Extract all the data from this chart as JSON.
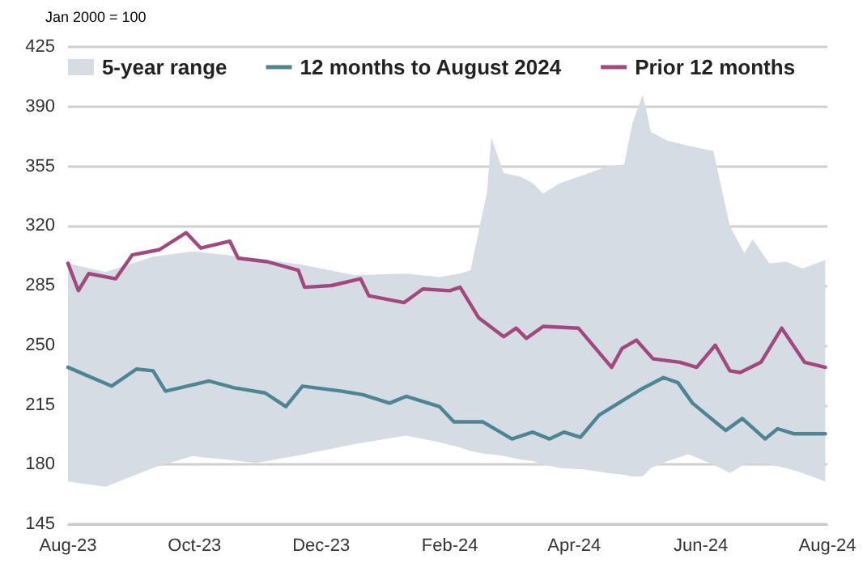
{
  "chart_data": {
    "type": "line",
    "annotations": [
      "Jan 2000 = 100"
    ],
    "xlim": [
      "2023-08-01",
      "2024-08-01"
    ],
    "xticks": [
      {
        "value": "2023-08-01",
        "label": "Aug-23"
      },
      {
        "value": "2023-10-01",
        "label": "Oct-23"
      },
      {
        "value": "2023-12-01",
        "label": "Dec-23"
      },
      {
        "value": "2024-02-01",
        "label": "Feb-24"
      },
      {
        "value": "2024-04-01",
        "label": "Apr-24"
      },
      {
        "value": "2024-06-01",
        "label": "Jun-24"
      },
      {
        "value": "2024-08-01",
        "label": "Aug-24"
      }
    ],
    "ylim": [
      145,
      425
    ],
    "yticks": [
      145,
      180,
      215,
      250,
      285,
      320,
      355,
      390,
      425
    ],
    "grid": "y",
    "legend": "top",
    "marker": "none",
    "line_style": "solid",
    "series": [
      {
        "name": "5-year range",
        "color": "#d6dce4",
        "x": [
          "2023-08-01",
          "2023-08-19",
          "2023-09-11",
          "2023-09-30",
          "2023-10-31",
          "2023-11-23",
          "2023-12-17",
          "2024-01-11",
          "2024-01-27",
          "2024-02-06",
          "2024-02-11",
          "2024-02-19",
          "2024-02-21",
          "2024-02-27",
          "2024-03-06",
          "2024-03-12",
          "2024-03-17",
          "2024-03-25",
          "2024-04-06",
          "2024-04-17",
          "2024-04-25",
          "2024-04-29",
          "2024-05-04",
          "2024-05-08",
          "2024-05-16",
          "2024-05-26",
          "2024-06-07",
          "2024-06-15",
          "2024-06-22",
          "2024-06-26",
          "2024-07-04",
          "2024-07-12",
          "2024-07-20",
          "2024-07-31"
        ],
        "values": [
          null,
          null,
          null,
          null,
          null,
          null,
          null,
          null,
          null,
          null,
          null,
          null,
          null,
          null,
          null,
          null,
          null,
          null,
          null,
          null,
          null,
          null,
          null,
          null,
          null,
          null,
          null,
          null,
          null,
          null,
          null,
          null,
          null,
          null
        ],
        "upper": [
          298,
          293,
          302,
          305,
          301,
          297,
          291,
          292,
          290,
          292,
          294,
          340,
          372,
          351,
          349,
          345,
          339,
          345,
          350,
          355,
          356,
          380,
          397,
          375,
          370,
          367,
          364,
          320,
          304,
          312,
          298,
          299,
          295,
          300
        ],
        "lower": [
          170,
          167,
          178,
          185,
          181,
          186,
          192,
          197,
          193,
          190,
          188,
          186,
          186,
          185,
          183,
          182,
          180,
          178,
          177,
          175,
          174,
          173,
          173,
          178,
          182,
          186,
          180,
          175,
          180,
          181,
          180,
          178,
          175,
          170
        ]
      },
      {
        "name": "12 months to August 2024",
        "color": "#4e8594",
        "x": [
          "2023-08-01",
          "2023-08-22",
          "2023-09-03",
          "2023-09-11",
          "2023-09-17",
          "2023-10-08",
          "2023-10-20",
          "2023-11-04",
          "2023-11-14",
          "2023-11-22",
          "2023-12-11",
          "2023-12-21",
          "2024-01-03",
          "2024-01-11",
          "2024-01-27",
          "2024-02-03",
          "2024-02-17",
          "2024-03-02",
          "2024-03-12",
          "2024-03-20",
          "2024-03-27",
          "2024-04-04",
          "2024-04-13",
          "2024-04-25",
          "2024-05-03",
          "2024-05-14",
          "2024-05-21",
          "2024-05-28",
          "2024-06-09",
          "2024-06-13",
          "2024-06-21",
          "2024-07-02",
          "2024-07-08",
          "2024-07-16",
          "2024-07-31"
        ],
        "values": [
          237,
          226,
          236,
          235,
          223,
          229,
          225,
          222,
          214,
          226,
          223,
          221,
          216,
          220,
          214,
          205,
          205,
          195,
          199,
          195,
          199,
          196,
          209,
          218,
          224,
          231,
          228,
          216,
          204,
          200,
          207,
          195,
          201,
          198,
          198
        ]
      },
      {
        "name": "Prior 12 months",
        "color": "#a3487f",
        "x": [
          "2023-08-01",
          "2023-08-06",
          "2023-08-11",
          "2023-08-24",
          "2023-09-01",
          "2023-09-14",
          "2023-09-27",
          "2023-10-04",
          "2023-10-18",
          "2023-10-22",
          "2023-11-05",
          "2023-11-20",
          "2023-11-23",
          "2023-12-06",
          "2023-12-20",
          "2023-12-24",
          "2024-01-10",
          "2024-01-19",
          "2024-02-01",
          "2024-02-06",
          "2024-02-15",
          "2024-02-27",
          "2024-03-04",
          "2024-03-09",
          "2024-03-17",
          "2024-04-03",
          "2024-04-19",
          "2024-04-24",
          "2024-05-01",
          "2024-05-09",
          "2024-05-22",
          "2024-05-30",
          "2024-06-08",
          "2024-06-15",
          "2024-06-20",
          "2024-06-30",
          "2024-07-10",
          "2024-07-21",
          "2024-07-31"
        ],
        "values": [
          298,
          282,
          292,
          289,
          303,
          306,
          316,
          307,
          311,
          301,
          299,
          294,
          284,
          285,
          289,
          279,
          275,
          283,
          282,
          284,
          266,
          255,
          260,
          254,
          261,
          260,
          237,
          248,
          253,
          242,
          240,
          237,
          250,
          235,
          234,
          240,
          260,
          240,
          237
        ]
      }
    ]
  }
}
